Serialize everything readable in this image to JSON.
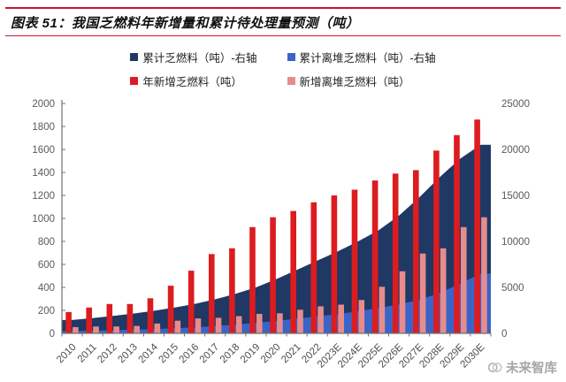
{
  "header": {
    "title": "图表 51：我国乏燃料年新增量和累计待处理量预测（吨）"
  },
  "watermark": {
    "label": "未来智库"
  },
  "colors": {
    "rule_red": "#CC1433",
    "axis_text": "#595959",
    "axis_line": "#707070",
    "legend_text": "#1f1f1f"
  },
  "chart_data": {
    "type": "combo",
    "title": "我国乏燃料年新增量和累计待处理量预测（吨）",
    "grid": false,
    "legend_position": "top",
    "categories": [
      "2010",
      "2011",
      "2012",
      "2013",
      "2014",
      "2015",
      "2016",
      "2017",
      "2018",
      "2019",
      "2020",
      "2021",
      "2022",
      "2023E",
      "2024E",
      "2025E",
      "2026E",
      "2027E",
      "2028E",
      "2029E",
      "2030E"
    ],
    "left_axis": {
      "min": 0,
      "max": 2000,
      "step": 200
    },
    "right_axis": {
      "min": 0,
      "max": 25000,
      "step": 5000
    },
    "series": [
      {
        "name": "累计乏燃料（吨）-右轴",
        "chart": "area",
        "axis": "right",
        "color": "#1F3864",
        "values": [
          1450,
          1650,
          1900,
          2150,
          2450,
          2800,
          3200,
          3700,
          4300,
          5000,
          5900,
          6900,
          7900,
          8900,
          10000,
          11200,
          12800,
          14800,
          17000,
          19000,
          20500
        ]
      },
      {
        "name": "累计离堆乏燃料（吨）-右轴",
        "chart": "area",
        "axis": "right",
        "color": "#3A64C8",
        "values": [
          250,
          300,
          350,
          400,
          450,
          550,
          650,
          800,
          950,
          1150,
          1350,
          1600,
          1850,
          2100,
          2400,
          2750,
          3150,
          3650,
          4400,
          5400,
          6500
        ]
      },
      {
        "name": "年新增乏燃料（吨）",
        "chart": "bar",
        "axis": "left",
        "color": "#DD1C20",
        "values": [
          185,
          225,
          255,
          255,
          305,
          415,
          545,
          690,
          740,
          925,
          1010,
          1065,
          1140,
          1200,
          1250,
          1330,
          1390,
          1420,
          1590,
          1725,
          1860
        ]
      },
      {
        "name": "新增离堆乏燃料（吨）",
        "chart": "bar",
        "axis": "left",
        "color": "#E78C8C",
        "values": [
          55,
          60,
          60,
          65,
          85,
          110,
          130,
          135,
          150,
          170,
          175,
          205,
          235,
          250,
          290,
          405,
          540,
          695,
          740,
          925,
          1010
        ]
      }
    ]
  }
}
